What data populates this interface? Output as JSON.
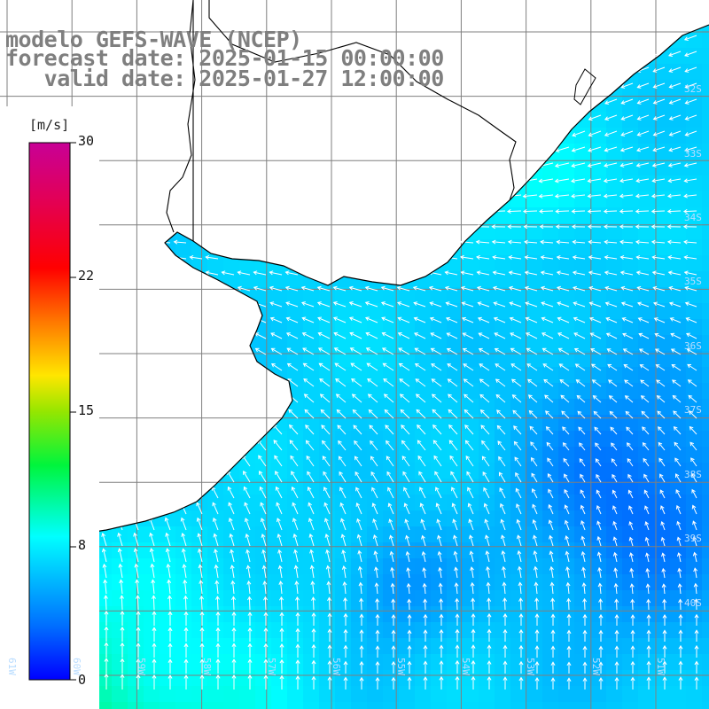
{
  "title": {
    "line1": "modelo GEFS-WAVE (NCEP)",
    "line2": "forecast date: 2025-01-15 00:00:00",
    "line3": "   valid date: 2025-01-27 12:00:00"
  },
  "colorbar": {
    "unit": "[m/s]",
    "labels": [
      "30",
      "22",
      "15",
      "8",
      "0"
    ],
    "min": 0,
    "max": 30
  },
  "lat_labels": [
    "32S",
    "33S",
    "34S",
    "35S",
    "36S",
    "37S",
    "38S",
    "39S",
    "40S"
  ],
  "lon_labels": [
    "61W",
    "60W",
    "59W",
    "58W",
    "57W",
    "56W",
    "55W",
    "54W",
    "53W",
    "52W",
    "51W"
  ],
  "colors": {
    "land": "#ffffff",
    "coastline": "#000000",
    "grid": "#808080",
    "arrows": "#ffffff",
    "title": "#7f7f7f"
  }
}
